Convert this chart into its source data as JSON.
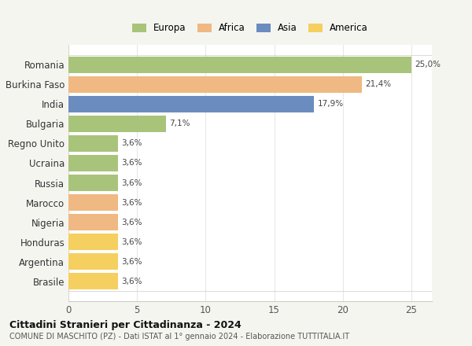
{
  "countries": [
    "Romania",
    "Burkina Faso",
    "India",
    "Bulgaria",
    "Regno Unito",
    "Ucraina",
    "Russia",
    "Marocco",
    "Nigeria",
    "Honduras",
    "Argentina",
    "Brasile"
  ],
  "values": [
    25.0,
    21.4,
    17.9,
    7.1,
    3.6,
    3.6,
    3.6,
    3.6,
    3.6,
    3.6,
    3.6,
    3.6
  ],
  "labels": [
    "25,0%",
    "21,4%",
    "17,9%",
    "7,1%",
    "3,6%",
    "3,6%",
    "3,6%",
    "3,6%",
    "3,6%",
    "3,6%",
    "3,6%",
    "3,6%"
  ],
  "colors": [
    "#a8c47a",
    "#f0b882",
    "#6b8cbf",
    "#a8c47a",
    "#a8c47a",
    "#a8c47a",
    "#a8c47a",
    "#f0b882",
    "#f0b882",
    "#f5d060",
    "#f5d060",
    "#f5d060"
  ],
  "continent_colors": {
    "Europa": "#a8c47a",
    "Africa": "#f0b882",
    "Asia": "#6b8cbf",
    "America": "#f5d060"
  },
  "xlim": [
    0,
    26.5
  ],
  "xticks": [
    0,
    5,
    10,
    15,
    20,
    25
  ],
  "title": "Cittadini Stranieri per Cittadinanza - 2024",
  "subtitle": "COMUNE DI MASCHITO (PZ) - Dati ISTAT al 1° gennaio 2024 - Elaborazione TUTTITALIA.IT",
  "outer_bg": "#f5f5f0",
  "plot_bg": "#ffffff",
  "grid_color": "#e8e8e8"
}
